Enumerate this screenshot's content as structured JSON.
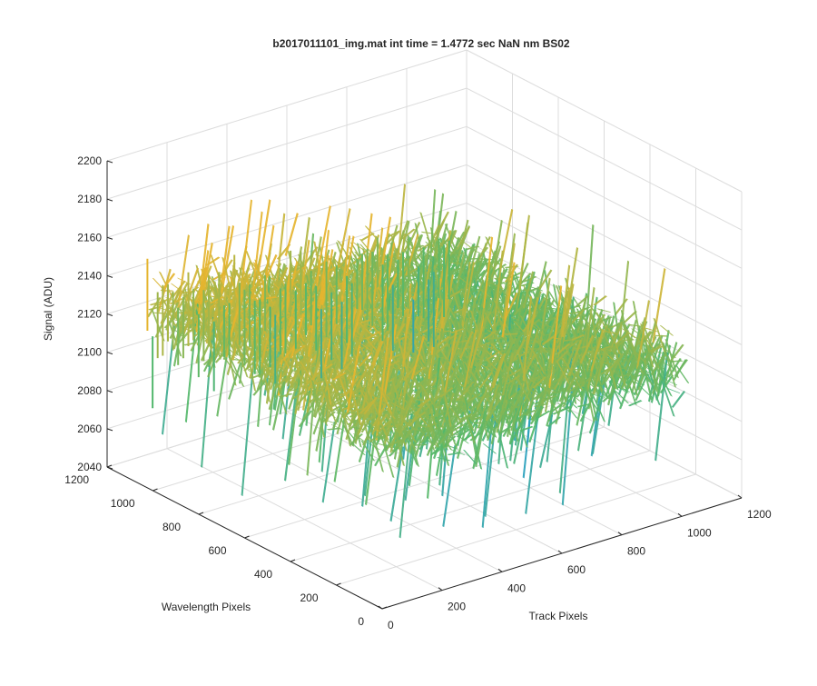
{
  "chart_data": {
    "type": "surface",
    "title": "b2017011101_img.mat int time = 1.4772 sec  NaN nm BS02",
    "xlabel": "Track Pixels",
    "ylabel": "Wavelength Pixels",
    "zlabel": "Signal (ADU)",
    "xlim": [
      0,
      1200
    ],
    "ylim": [
      0,
      1200
    ],
    "zlim": [
      2040,
      2200
    ],
    "xticks": [
      "0",
      "200",
      "400",
      "600",
      "800",
      "1000",
      "1200"
    ],
    "yticks": [
      "0",
      "200",
      "400",
      "600",
      "800",
      "1000",
      "1200"
    ],
    "zticks": [
      "2040",
      "2060",
      "2080",
      "2100",
      "2120",
      "2140",
      "2160",
      "2180",
      "2200"
    ],
    "grid": true,
    "colormap": "parula",
    "colors": {
      "low": "#1f9bcf",
      "mid": "#55b86a",
      "high": "#e6b52f",
      "grid": "#dcdcdc",
      "axis": "#262626"
    },
    "data_extent": {
      "x": [
        0,
        1024
      ],
      "y": [
        0,
        1024
      ]
    },
    "surface_summary": {
      "mean_signal": 2115,
      "noise_range": [
        2050,
        2190
      ],
      "trend": "signal highest near low track pixels / high wavelength pixels, decreasing toward high track pixels"
    }
  }
}
